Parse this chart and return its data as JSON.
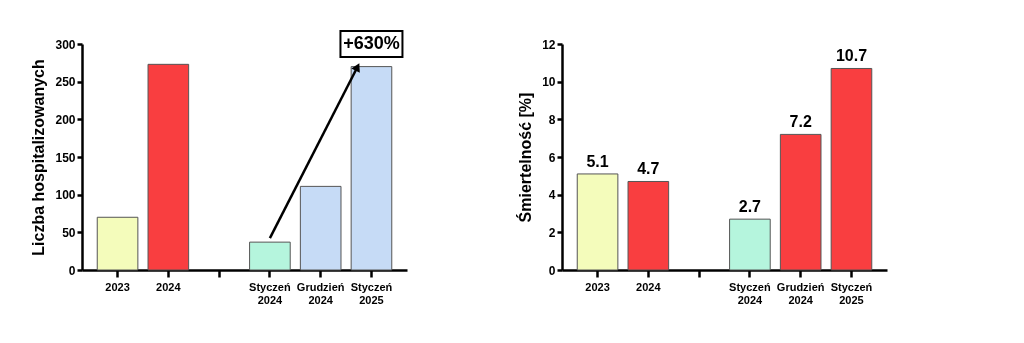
{
  "chart_data": [
    {
      "type": "bar",
      "ylabel": "Liczba hospitalizowanych",
      "categories": [
        "2023",
        "2024",
        null,
        "Styczeń 2024",
        "Grudzień 2024",
        "Styczeń 2025"
      ],
      "values": [
        70,
        273,
        null,
        37,
        111,
        270
      ],
      "colors": [
        "#f4fcbb",
        "#f93e40",
        null,
        "#b5f5dd",
        "#c6dbf6",
        "#c6dbf6"
      ],
      "ylim": [
        0,
        300
      ],
      "yticks": [
        0,
        50,
        100,
        150,
        200,
        250,
        300
      ],
      "grid": false,
      "annotations": [
        "+630%"
      ]
    },
    {
      "type": "bar",
      "ylabel": "Śmiertelność [%]",
      "categories": [
        "2023",
        "2024",
        null,
        "Styczeń 2024",
        "Grudzień 2024",
        "Styczeń 2025"
      ],
      "values": [
        5.1,
        4.7,
        null,
        2.7,
        7.2,
        10.7
      ],
      "colors": [
        "#f4fcbb",
        "#f93e40",
        null,
        "#b5f5dd",
        "#f93e40",
        "#f93e40"
      ],
      "ylim": [
        0,
        12
      ],
      "yticks": [
        0,
        2,
        4,
        6,
        8,
        10,
        12
      ],
      "grid": false,
      "data_labels": true
    }
  ]
}
